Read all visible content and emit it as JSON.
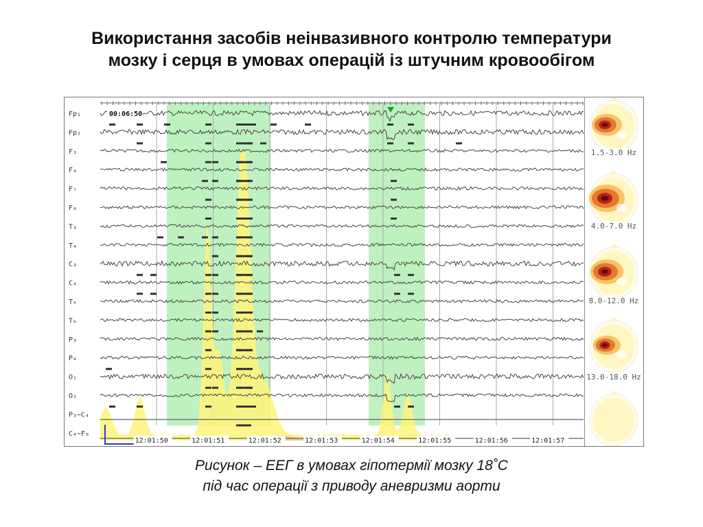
{
  "slide": {
    "title_line1": "Використання засобів неінвазивного контролю температури",
    "title_line2": "мозку і серця в умовах операцій із штучним кровообігом",
    "caption_line1": "Рисунок – ЕЕГ в умовах гіпотермії мозку 18˚С",
    "caption_line2": "під час операції з приводу аневризми аорти"
  },
  "eeg": {
    "timestamp": "00:06:50",
    "channels": [
      "Fp₁",
      "Fp₂",
      "F₃",
      "F₄",
      "F₇",
      "F₈",
      "T₃",
      "T₄",
      "C₃",
      "C₄",
      "T₅",
      "T₆",
      "P₃",
      "P₄",
      "O₁",
      "O₂",
      "P₃−C₄",
      "C₄−F₈"
    ],
    "time_ticks": [
      "12:01:50",
      "12:01:51",
      "12:01:52",
      "12:01:53",
      "12:01:54",
      "12:01:55",
      "12:01:56",
      "12:01:57"
    ],
    "colors": {
      "highlight": "#bff0c0",
      "trace": "#444444",
      "spectrum_fill": "#fff37a",
      "marker": "#1f9a2a",
      "grid": "#999999"
    }
  },
  "topomaps": [
    {
      "band": "1.5-3.0 Hz"
    },
    {
      "band": "4.0-7.0 Hz"
    },
    {
      "band": "8.0-12.0 Hz"
    },
    {
      "band": "13.0-18.0 Hz"
    },
    {
      "band": ""
    }
  ]
}
